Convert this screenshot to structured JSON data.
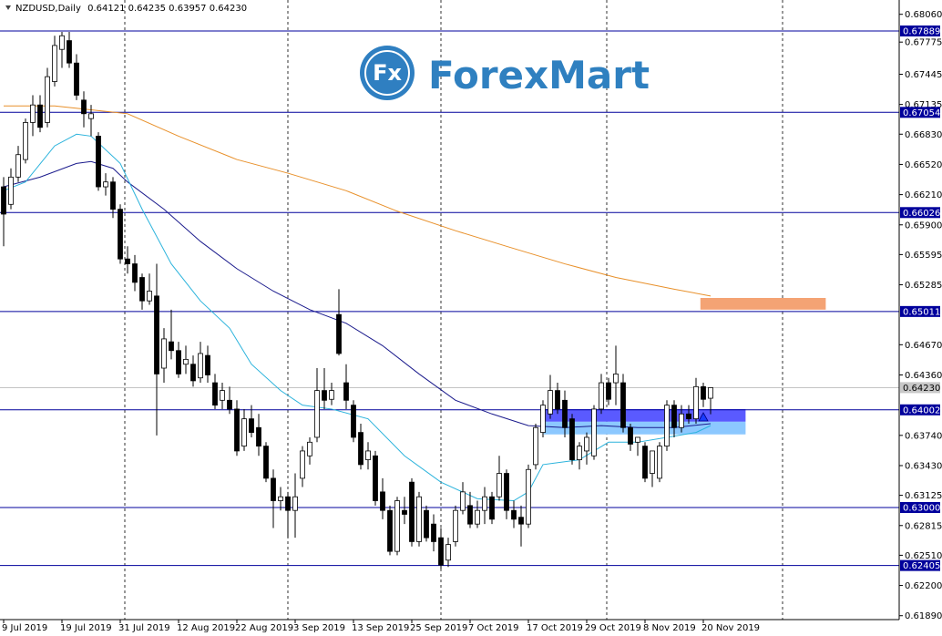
{
  "chart_data": {
    "type": "candlestick",
    "header": {
      "symbol": "NZDUSD,Daily",
      "ohlc": [
        "0.64121",
        "0.64235",
        "0.63957",
        "0.64230"
      ]
    },
    "logo": {
      "badge": "Fx",
      "name": "ForexMart"
    },
    "categories": [
      "9 Jul 2019",
      null,
      null,
      null,
      null,
      null,
      null,
      null,
      "19 Jul 2019",
      null,
      null,
      null,
      null,
      null,
      null,
      null,
      "31 Jul 2019",
      null,
      null,
      null,
      null,
      null,
      null,
      null,
      "12 Aug 2019",
      null,
      null,
      null,
      null,
      null,
      null,
      null,
      "22 Aug 2019",
      null,
      null,
      null,
      null,
      null,
      null,
      null,
      "3 Sep 2019",
      null,
      null,
      null,
      null,
      null,
      null,
      null,
      "13 Sep 2019",
      null,
      null,
      null,
      null,
      null,
      null,
      null,
      "25 Sep 2019",
      null,
      null,
      null,
      null,
      null,
      null,
      null,
      "7 Oct 2019",
      null,
      null,
      null,
      null,
      null,
      null,
      null,
      "17 Oct 2019",
      null,
      null,
      null,
      null,
      null,
      null,
      null,
      "29 Oct 2019",
      null,
      null,
      null,
      null,
      null,
      null,
      null,
      "8 Nov 2019",
      null,
      null,
      null,
      null,
      null,
      null,
      null,
      "20 Nov 2019",
      null
    ],
    "open": [
      0.6629,
      0.6611,
      0.6639,
      0.6657,
      0.6695,
      0.6713,
      0.6695,
      0.6737,
      0.677,
      0.6779,
      0.6756,
      0.6718,
      0.6699,
      0.6681,
      0.6629,
      0.6634,
      0.6606,
      0.6555,
      0.655,
      0.6536,
      0.6512,
      0.6517,
      0.6443,
      0.647,
      0.6461,
      0.6447,
      0.6447,
      0.6433,
      0.6456,
      0.6428,
      0.641,
      0.641,
      0.6401,
      0.6363,
      0.6391,
      0.6382,
      0.6363,
      0.633,
      0.6307,
      0.6311,
      0.6297,
      0.633,
      0.6353,
      0.6372,
      0.642,
      0.6411,
      0.6498,
      0.6428,
      0.6405,
      0.6377,
      0.6349,
      0.6353,
      0.6316,
      0.6297,
      0.6255,
      0.6297,
      0.6326,
      0.6265,
      0.6297,
      0.6283,
      0.6269,
      0.6246,
      0.6265,
      0.6297,
      0.6302,
      0.6283,
      0.6297,
      0.6311,
      0.6311,
      0.6335,
      0.6297,
      0.629,
      0.6283,
      0.6344,
      0.6377,
      0.6396,
      0.642,
      0.641,
      0.6391,
      0.6349,
      0.6358,
      0.6353,
      0.6401,
      0.6428,
      0.6428,
      0.6428,
      0.6382,
      0.6367,
      0.6363,
      0.6335,
      0.633,
      0.6363,
      0.6405,
      0.6382,
      0.6396,
      0.6391,
      0.6424,
      0.64121
    ],
    "high": [
      0.6639,
      0.6648,
      0.6671,
      0.6699,
      0.6723,
      0.6723,
      0.6751,
      0.6784,
      0.6788,
      0.6788,
      0.6765,
      0.6727,
      0.6713,
      0.6685,
      0.6643,
      0.6639,
      0.6611,
      0.6568,
      0.6559,
      0.654,
      0.654,
      0.655,
      0.6484,
      0.6503,
      0.647,
      0.6466,
      0.6456,
      0.647,
      0.6466,
      0.6437,
      0.6428,
      0.6424,
      0.641,
      0.6401,
      0.6405,
      0.6396,
      0.6367,
      0.6339,
      0.6321,
      0.6316,
      0.6335,
      0.6363,
      0.6372,
      0.6443,
      0.6443,
      0.6428,
      0.6524,
      0.6447,
      0.641,
      0.6386,
      0.6367,
      0.6358,
      0.633,
      0.6302,
      0.6311,
      0.6311,
      0.633,
      0.6316,
      0.6302,
      0.6293,
      0.6279,
      0.6269,
      0.6302,
      0.6326,
      0.6316,
      0.6307,
      0.6321,
      0.6316,
      0.6353,
      0.6339,
      0.6307,
      0.6302,
      0.6344,
      0.6386,
      0.641,
      0.6436,
      0.6428,
      0.642,
      0.6396,
      0.6367,
      0.6377,
      0.6405,
      0.6437,
      0.6433,
      0.6466,
      0.6437,
      0.6386,
      0.6372,
      0.6367,
      0.6358,
      0.6367,
      0.641,
      0.641,
      0.6405,
      0.6405,
      0.6433,
      0.6428,
      0.64235
    ],
    "low": [
      0.6568,
      0.6606,
      0.6634,
      0.6653,
      0.6681,
      0.6685,
      0.669,
      0.6732,
      0.6751,
      0.6751,
      0.6718,
      0.669,
      0.6681,
      0.6625,
      0.662,
      0.6597,
      0.655,
      0.654,
      0.6522,
      0.6503,
      0.6508,
      0.6374,
      0.6428,
      0.6452,
      0.6433,
      0.6437,
      0.6424,
      0.6428,
      0.6428,
      0.6401,
      0.6401,
      0.6396,
      0.6353,
      0.6358,
      0.6372,
      0.6353,
      0.6326,
      0.6279,
      0.6297,
      0.6269,
      0.6269,
      0.6321,
      0.6344,
      0.6367,
      0.6401,
      0.6405,
      0.6456,
      0.6401,
      0.6367,
      0.6339,
      0.6339,
      0.6302,
      0.6288,
      0.6251,
      0.6251,
      0.6283,
      0.626,
      0.626,
      0.6265,
      0.6255,
      0.6237,
      0.6239,
      0.626,
      0.6293,
      0.6279,
      0.6279,
      0.6283,
      0.6283,
      0.6307,
      0.6288,
      0.6279,
      0.626,
      0.6279,
      0.6339,
      0.6372,
      0.6391,
      0.6396,
      0.6372,
      0.6344,
      0.6339,
      0.6344,
      0.6349,
      0.6396,
      0.6405,
      0.6405,
      0.6377,
      0.6358,
      0.6353,
      0.6326,
      0.6321,
      0.6326,
      0.6358,
      0.6372,
      0.6377,
      0.6386,
      0.6386,
      0.6403,
      0.63957
    ],
    "close": [
      0.6601,
      0.6639,
      0.6662,
      0.6695,
      0.6713,
      0.669,
      0.6742,
      0.6774,
      0.6784,
      0.6756,
      0.6723,
      0.6704,
      0.6704,
      0.6629,
      0.6634,
      0.6606,
      0.6555,
      0.655,
      0.6531,
      0.6512,
      0.6522,
      0.6437,
      0.6473,
      0.6461,
      0.6437,
      0.6452,
      0.643,
      0.6458,
      0.6436,
      0.6405,
      0.642,
      0.6401,
      0.6358,
      0.6391,
      0.6377,
      0.6363,
      0.633,
      0.6307,
      0.6311,
      0.6297,
      0.6311,
      0.6358,
      0.6367,
      0.642,
      0.641,
      0.642,
      0.6458,
      0.641,
      0.6372,
      0.6344,
      0.6358,
      0.6307,
      0.6297,
      0.6255,
      0.6307,
      0.6293,
      0.6265,
      0.6311,
      0.6269,
      0.6265,
      0.6241,
      0.6262,
      0.6297,
      0.6316,
      0.6283,
      0.6297,
      0.6311,
      0.6288,
      0.6335,
      0.6297,
      0.6288,
      0.6283,
      0.6339,
      0.6382,
      0.6405,
      0.642,
      0.6401,
      0.6382,
      0.6349,
      0.6363,
      0.6372,
      0.6401,
      0.6428,
      0.6411,
      0.6437,
      0.6382,
      0.6365,
      0.6372,
      0.633,
      0.6358,
      0.6363,
      0.6405,
      0.6382,
      0.6396,
      0.6391,
      0.6424,
      0.6411,
      0.6423
    ],
    "colors": {
      "up": "#ffffff",
      "down": "#000000",
      "outline": "#000000",
      "level": "#00009c",
      "label_bg": "#00009c",
      "price_line": "#b0b0b0",
      "price_bg": "#c8c8c8"
    },
    "ylim": [
      0.6185,
      0.6816
    ],
    "yticks": [
      {
        "value": 0.6806,
        "label": "0.68060"
      },
      0.67775,
      0.67445,
      0.67135,
      {
        "value": 0.6683,
        "label": "0.66830"
      },
      {
        "value": 0.6652,
        "label": "0.66520"
      },
      {
        "value": 0.6621,
        "label": "0.66210"
      },
      {
        "value": 0.659,
        "label": "0.65900"
      },
      0.65595,
      0.65285,
      {
        "value": 0.6467,
        "label": "0.64670"
      },
      {
        "value": 0.6436,
        "label": "0.64360"
      },
      {
        "value": 0.6374,
        "label": "0.63740"
      },
      {
        "value": 0.6343,
        "label": "0.63430"
      },
      0.63125,
      0.62815,
      {
        "value": 0.6251,
        "label": "0.62510"
      },
      {
        "value": 0.622,
        "label": "0.62200"
      },
      {
        "value": 0.6189,
        "label": "0.61890"
      }
    ],
    "grid": false,
    "moving_averages": [
      {
        "color": "#e8902a",
        "x": [
          0,
          7,
          17,
          24,
          32,
          39,
          47,
          54,
          62,
          69,
          77,
          84,
          92,
          97
        ],
        "values": [
          0.6712,
          0.6712,
          0.6704,
          0.6681,
          0.6657,
          0.6643,
          0.6625,
          0.6604,
          0.6584,
          0.6568,
          0.655,
          0.6536,
          0.6524,
          0.6517
        ]
      },
      {
        "color": "#1a1a8c",
        "x": [
          0,
          5,
          10,
          12,
          15,
          17,
          22,
          27,
          32,
          37,
          42,
          47,
          52,
          57,
          62,
          67,
          72,
          77,
          82,
          87,
          92,
          97
        ],
        "values": [
          0.6629,
          0.6639,
          0.6653,
          0.6655,
          0.6648,
          0.6634,
          0.6606,
          0.6573,
          0.6545,
          0.6522,
          0.6503,
          0.6489,
          0.6466,
          0.6437,
          0.641,
          0.6396,
          0.6384,
          0.6382,
          0.6384,
          0.6382,
          0.6382,
          0.6386
        ]
      },
      {
        "color": "#2bb3dc",
        "x": [
          0,
          3,
          7,
          10,
          12,
          16,
          19,
          23,
          27,
          31,
          34,
          38,
          41,
          45,
          50,
          55,
          60,
          65,
          70,
          72,
          74,
          79,
          83,
          87,
          91,
          95,
          97
        ],
        "values": [
          0.6625,
          0.6634,
          0.6671,
          0.6683,
          0.6681,
          0.6653,
          0.6606,
          0.655,
          0.6512,
          0.6484,
          0.6447,
          0.642,
          0.6405,
          0.6401,
          0.6391,
          0.6353,
          0.6326,
          0.6309,
          0.6307,
          0.6316,
          0.6344,
          0.6349,
          0.6367,
          0.6367,
          0.6372,
          0.6377,
          0.6384
        ]
      }
    ],
    "zones": [
      {
        "color": "#f4a374",
        "low": 0.6503,
        "high": 0.6515,
        "from": 95.6,
        "to": 112.8
      },
      {
        "color": "#5a5aff",
        "low": 0.6388,
        "high": 0.6401,
        "from": 74.1,
        "to": 101.8
      },
      {
        "color": "#8cc8ff",
        "low": 0.6375,
        "high": 0.6388,
        "from": 74.1,
        "to": 101.8
      }
    ],
    "levels": [
      0.67889,
      0.67054,
      0.66026,
      0.65011,
      0.64002,
      {
        "value": 0.63,
        "label": "0.63000"
      },
      0.62405
    ],
    "current_price": {
      "value": 0.6423,
      "label": "0.64230"
    }
  }
}
